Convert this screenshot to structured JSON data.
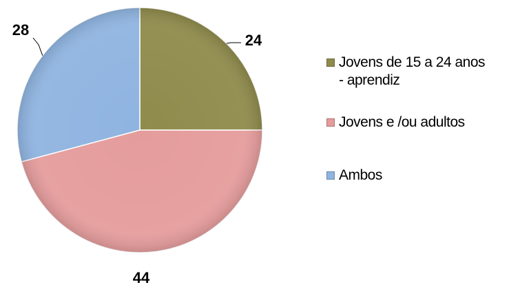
{
  "chart_data": {
    "type": "pie",
    "categories": [
      "Jovens de 15 a 24 anos - aprendiz",
      "Jovens e /ou adultos",
      "Ambos"
    ],
    "values": [
      24,
      44,
      28
    ],
    "colors": [
      "#8f8b4c",
      "#e59c9c",
      "#8fb4e0"
    ],
    "legend": "right"
  }
}
